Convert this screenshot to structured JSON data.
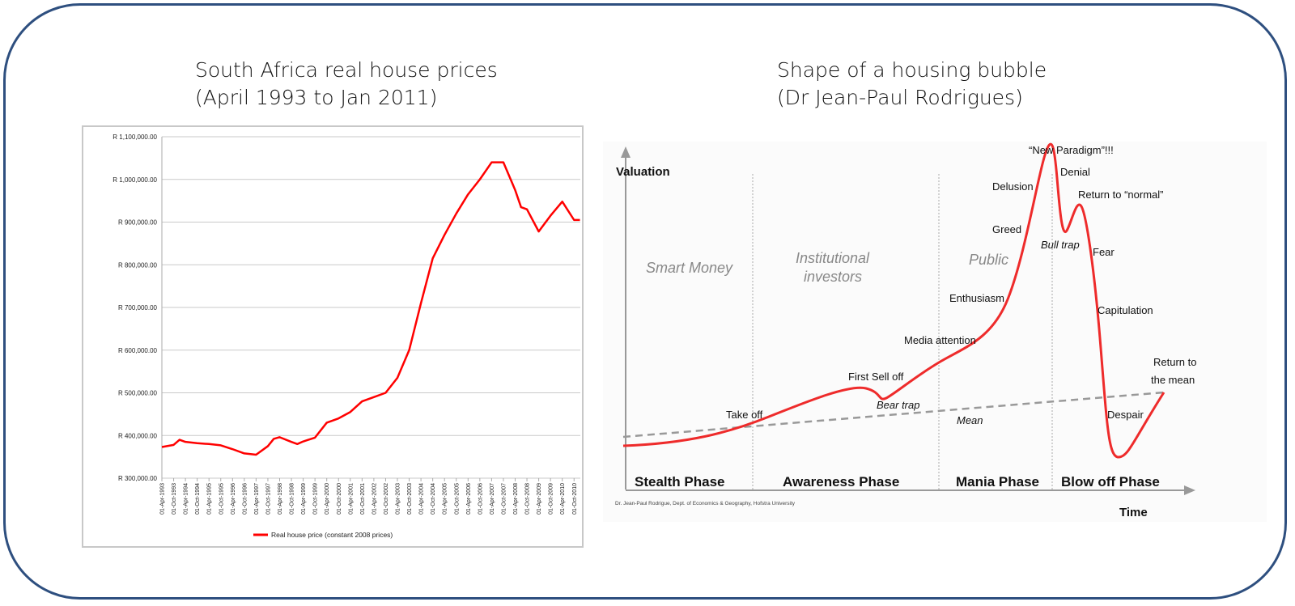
{
  "left_title": [
    "South Africa real house prices",
    "(April 1993 to Jan 2011)"
  ],
  "right_title": [
    "Shape of a housing bubble",
    "(Dr Jean-Paul Rodrigues)"
  ],
  "chart_data": [
    {
      "type": "line",
      "ylim": [
        300000,
        1100000
      ],
      "yticks": [
        "R 300,000.00",
        "R 400,000.00",
        "R 500,000.00",
        "R 600,000.00",
        "R 700,000.00",
        "R 800,000.00",
        "R 900,000.00",
        "R 1,000,000.00",
        "R 1,100,000.00"
      ],
      "ytick_values": [
        300000,
        400000,
        500000,
        600000,
        700000,
        800000,
        900000,
        1000000,
        1100000
      ],
      "grid": true,
      "legend_position": "bottom",
      "series": [
        {
          "name": "Real house price (constant 2008 prices)",
          "color": "#ff0000"
        }
      ],
      "xticks": [
        "01-Apr-1993",
        "01-Oct-1993",
        "01-Apr-1994",
        "01-Oct-1994",
        "01-Apr-1995",
        "01-Oct-1995",
        "01-Apr-1996",
        "01-Oct-1996",
        "01-Apr-1997",
        "01-Oct-1997",
        "01-Apr-1998",
        "01-Oct-1998",
        "01-Apr-1999",
        "01-Oct-1999",
        "01-Apr-2000",
        "01-Oct-2000",
        "01-Apr-2001",
        "01-Oct-2001",
        "01-Apr-2002",
        "01-Oct-2002",
        "01-Apr-2003",
        "01-Oct-2003",
        "01-Apr-2004",
        "01-Oct-2004",
        "01-Apr-2005",
        "01-Oct-2005",
        "01-Apr-2006",
        "01-Oct-2006",
        "01-Apr-2007",
        "01-Oct-2007",
        "01-Apr-2008",
        "01-Oct-2008",
        "01-Apr-2009",
        "01-Oct-2009",
        "01-Apr-2010",
        "01-Oct-2010"
      ],
      "x": [
        "1993-04",
        "1993-10",
        "1994-01",
        "1994-04",
        "1994-10",
        "1995-04",
        "1995-10",
        "1996-04",
        "1996-10",
        "1997-04",
        "1997-10",
        "1998-01",
        "1998-04",
        "1998-10",
        "1999-01",
        "1999-04",
        "1999-10",
        "2000-04",
        "2000-10",
        "2001-04",
        "2001-10",
        "2002-04",
        "2002-10",
        "2003-04",
        "2003-10",
        "2004-04",
        "2004-10",
        "2005-04",
        "2005-10",
        "2006-04",
        "2006-10",
        "2007-04",
        "2007-10",
        "2008-04",
        "2008-07",
        "2008-10",
        "2009-04",
        "2009-10",
        "2010-04",
        "2010-10",
        "2011-01"
      ],
      "y": [
        373000,
        378000,
        390000,
        385000,
        382000,
        380000,
        377000,
        368000,
        358000,
        355000,
        375000,
        392000,
        396000,
        385000,
        380000,
        386000,
        395000,
        430000,
        440000,
        455000,
        480000,
        490000,
        500000,
        535000,
        600000,
        710000,
        815000,
        870000,
        920000,
        965000,
        1000000,
        1040000,
        1040000,
        975000,
        935000,
        930000,
        878000,
        915000,
        948000,
        905000,
        905000
      ]
    },
    {
      "type": "line",
      "ylabel": "Valuation",
      "xlabel": "Time",
      "phases": [
        "Stealth Phase",
        "Awareness Phase",
        "Mania Phase",
        "Blow off Phase"
      ],
      "actors": [
        "Smart Money",
        "Institutional",
        "investors",
        "Public"
      ],
      "annotations": [
        "Take off",
        "First Sell off",
        "Bear trap",
        "Media attention",
        "Enthusiasm",
        "Greed",
        "Delusion",
        "“New Paradigm”!!!",
        "Denial",
        "Bull trap",
        "Return to “normal”",
        "Fear",
        "Capitulation",
        "Despair",
        "Return to",
        "the mean",
        "Mean"
      ],
      "credit": "Dr. Jean-Paul Rodrigue, Dept. of Economics & Geography, Hofstra University",
      "series_color": "#ee2b2b",
      "mean_color": "#999999"
    }
  ]
}
